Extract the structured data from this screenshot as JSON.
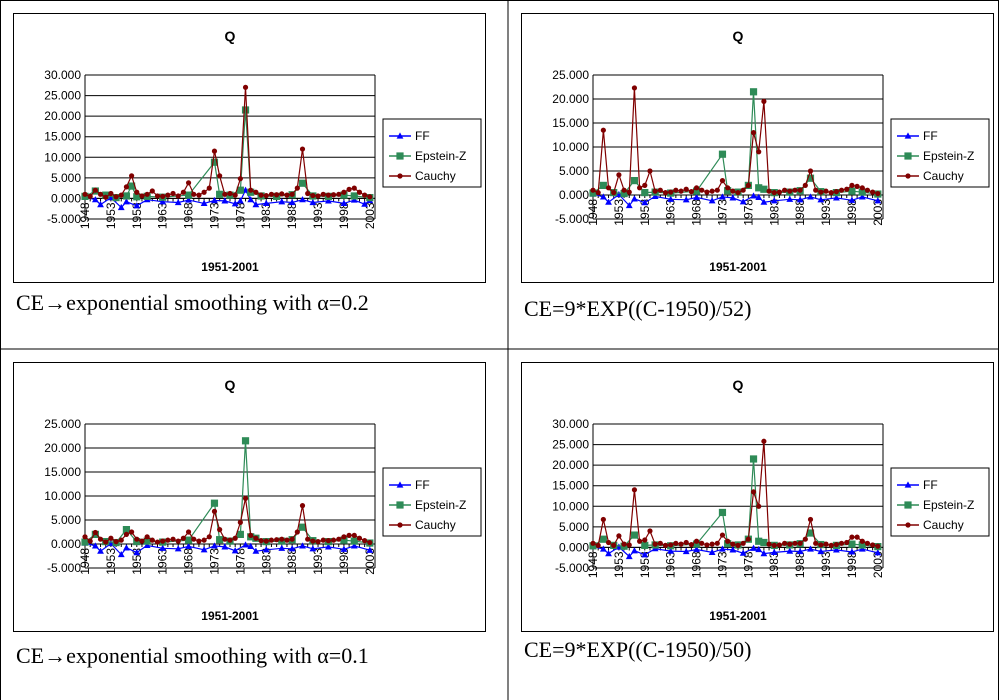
{
  "chart_data": [
    {
      "type": "line",
      "title": "Q",
      "xlabel": "1951-2001",
      "caption": "CE→exponential smoothing with α=0.2",
      "ylim": [
        -5,
        30
      ],
      "yticks": [
        "-5.000",
        "0.000",
        "5.000",
        "10.000",
        "15.000",
        "20.000",
        "25.000",
        "30.000"
      ],
      "x_range": [
        1948,
        2004
      ],
      "xticks": [
        "1948",
        "1953",
        "1958",
        "1963",
        "1968",
        "1973",
        "1978",
        "1983",
        "1988",
        "1993",
        "1998",
        "2003"
      ],
      "legend": "right",
      "series": [
        {
          "name": "FF",
          "color": "#0000FF",
          "marker": "triangle",
          "x": [
            1948,
            1950,
            1951,
            1953,
            1955,
            1956,
            1958,
            1960,
            1963,
            1966,
            1968,
            1971,
            1973,
            1975,
            1977,
            1978,
            1979,
            1980,
            1981,
            1983,
            1986,
            1988,
            1990,
            1992,
            1995,
            1998,
            2000,
            2002,
            2003
          ],
          "y": [
            0.3,
            -0.3,
            -1.5,
            0.2,
            -2.2,
            -0.8,
            -1.8,
            -0.3,
            -0.8,
            -1.0,
            -0.4,
            -1.2,
            -0.5,
            -0.6,
            -1.3,
            -0.6,
            2.0,
            -0.3,
            -1.5,
            -1.2,
            -0.8,
            -1.0,
            -0.3,
            -1.0,
            -0.6,
            -1.2,
            -0.4,
            -1.4,
            -0.5
          ]
        },
        {
          "name": "Epstein-Z",
          "color": "#2E8B57",
          "marker": "square",
          "x": [
            1948,
            1950,
            1952,
            1954,
            1956,
            1957,
            1958,
            1960,
            1963,
            1968,
            1973,
            1974,
            1976,
            1978,
            1979,
            1980,
            1982,
            1985,
            1988,
            1990,
            1992,
            1995,
            1998,
            2000,
            2003
          ],
          "y": [
            0.5,
            1.8,
            0.8,
            0.2,
            0.6,
            3.0,
            0.4,
            0.5,
            0.3,
            0.8,
            8.8,
            1.0,
            0.8,
            2.0,
            21.5,
            1.5,
            0.6,
            0.5,
            0.9,
            3.7,
            0.6,
            0.5,
            0.8,
            0.6,
            0.2
          ]
        },
        {
          "name": "Cauchy",
          "color": "#800000",
          "marker": "circle",
          "x": [
            1948,
            1949,
            1950,
            1951,
            1952,
            1953,
            1954,
            1955,
            1956,
            1957,
            1958,
            1959,
            1960,
            1961,
            1962,
            1963,
            1964,
            1965,
            1966,
            1967,
            1968,
            1969,
            1970,
            1971,
            1972,
            1973,
            1974,
            1975,
            1976,
            1977,
            1978,
            1979,
            1980,
            1981,
            1982,
            1983,
            1984,
            1985,
            1986,
            1987,
            1988,
            1989,
            1990,
            1991,
            1992,
            1993,
            1994,
            1995,
            1996,
            1997,
            1998,
            1999,
            2000,
            2001,
            2002,
            2003
          ],
          "y": [
            1.0,
            0.5,
            2.0,
            1.0,
            0.3,
            1.2,
            0.4,
            0.8,
            2.8,
            5.5,
            1.5,
            0.6,
            1.0,
            1.8,
            0.6,
            0.5,
            0.8,
            1.2,
            0.6,
            1.5,
            3.8,
            1.0,
            0.8,
            1.5,
            2.5,
            11.5,
            5.5,
            1.0,
            1.2,
            0.8,
            4.8,
            27.0,
            2.0,
            1.5,
            0.8,
            0.7,
            1.0,
            0.9,
            1.1,
            0.8,
            1.0,
            2.5,
            12.0,
            1.2,
            0.7,
            0.6,
            1.0,
            0.8,
            0.9,
            1.0,
            1.5,
            2.2,
            2.5,
            1.5,
            0.8,
            0.4
          ]
        }
      ]
    },
    {
      "type": "line",
      "title": "Q",
      "xlabel": "1951-2001",
      "caption": "CE=9*EXP((C-1950)/52)",
      "ylim": [
        -5,
        25
      ],
      "yticks": [
        "-5.000",
        "0.000",
        "5.000",
        "10.000",
        "15.000",
        "20.000",
        "25.000"
      ],
      "x_range": [
        1948,
        2004
      ],
      "xticks": [
        "1948",
        "1953",
        "1958",
        "1963",
        "1968",
        "1973",
        "1978",
        "1983",
        "1988",
        "1993",
        "1998",
        "2003"
      ],
      "legend": "right",
      "series": [
        {
          "name": "FF",
          "color": "#0000FF",
          "marker": "triangle",
          "x": [
            1948,
            1950,
            1951,
            1953,
            1955,
            1956,
            1958,
            1960,
            1963,
            1966,
            1968,
            1971,
            1973,
            1975,
            1977,
            1979,
            1980,
            1981,
            1983,
            1986,
            1988,
            1990,
            1992,
            1995,
            1998,
            2000,
            2003
          ],
          "y": [
            0.2,
            -0.4,
            -1.5,
            0.1,
            -2.2,
            -0.8,
            -1.6,
            -0.3,
            -0.9,
            -1.0,
            -0.5,
            -1.2,
            -0.4,
            -0.6,
            -1.4,
            -0.2,
            -0.5,
            -1.5,
            -1.2,
            -0.9,
            -1.0,
            -0.4,
            -1.0,
            -0.6,
            -1.1,
            -0.4,
            -1.2
          ]
        },
        {
          "name": "Epstein-Z",
          "color": "#2E8B57",
          "marker": "square",
          "x": [
            1948,
            1950,
            1952,
            1954,
            1956,
            1958,
            1960,
            1963,
            1968,
            1973,
            1974,
            1976,
            1978,
            1979,
            1980,
            1981,
            1983,
            1986,
            1988,
            1990,
            1992,
            1995,
            1998,
            2000,
            2003
          ],
          "y": [
            0.4,
            2.0,
            0.5,
            0.3,
            3.0,
            0.5,
            0.6,
            0.4,
            0.8,
            8.5,
            0.9,
            0.6,
            2.0,
            21.5,
            1.5,
            1.2,
            0.5,
            0.6,
            0.9,
            3.5,
            0.7,
            0.5,
            0.8,
            0.6,
            0.2
          ]
        },
        {
          "name": "Cauchy",
          "color": "#800000",
          "marker": "circle",
          "x": [
            1948,
            1949,
            1950,
            1951,
            1952,
            1953,
            1954,
            1955,
            1956,
            1957,
            1958,
            1959,
            1960,
            1961,
            1962,
            1963,
            1964,
            1965,
            1966,
            1967,
            1968,
            1969,
            1970,
            1971,
            1972,
            1973,
            1974,
            1975,
            1976,
            1977,
            1978,
            1979,
            1980,
            1981,
            1982,
            1983,
            1984,
            1985,
            1986,
            1987,
            1988,
            1989,
            1990,
            1991,
            1992,
            1993,
            1994,
            1995,
            1996,
            1997,
            1998,
            1999,
            2000,
            2001,
            2002,
            2003
          ],
          "y": [
            1.0,
            0.5,
            13.5,
            1.5,
            0.5,
            4.2,
            1.0,
            0.6,
            22.3,
            1.5,
            2.0,
            5.0,
            0.8,
            1.0,
            0.5,
            0.6,
            1.0,
            0.8,
            1.2,
            0.7,
            1.5,
            1.0,
            0.6,
            0.8,
            1.0,
            3.0,
            1.5,
            0.8,
            0.5,
            1.0,
            2.0,
            13.0,
            9.0,
            19.5,
            0.8,
            0.5,
            0.6,
            1.0,
            0.8,
            1.0,
            1.0,
            2.0,
            5.0,
            1.0,
            0.6,
            0.8,
            0.5,
            0.7,
            1.0,
            1.2,
            2.0,
            1.8,
            1.5,
            1.0,
            0.6,
            0.3
          ]
        }
      ]
    },
    {
      "type": "line",
      "title": "Q",
      "xlabel": "1951-2001",
      "caption": "CE→exponential smoothing with α=0.1",
      "ylim": [
        -5,
        25
      ],
      "yticks": [
        "-5.000",
        "0.000",
        "5.000",
        "10.000",
        "15.000",
        "20.000",
        "25.000"
      ],
      "x_range": [
        1948,
        2004
      ],
      "xticks": [
        "1948",
        "1953",
        "1958",
        "1963",
        "1968",
        "1973",
        "1978",
        "1983",
        "1988",
        "1993",
        "1998",
        "2003"
      ],
      "legend": "right",
      "series": [
        {
          "name": "FF",
          "color": "#0000FF",
          "marker": "triangle",
          "x": [
            1948,
            1950,
            1951,
            1953,
            1955,
            1956,
            1958,
            1960,
            1963,
            1966,
            1968,
            1971,
            1973,
            1975,
            1977,
            1979,
            1980,
            1981,
            1983,
            1986,
            1988,
            1990,
            1992,
            1995,
            1998,
            2000,
            2003
          ],
          "y": [
            0.2,
            -0.4,
            -1.5,
            0.1,
            -2.2,
            -0.8,
            -1.8,
            -0.3,
            -0.9,
            -1.0,
            -0.5,
            -1.2,
            -0.4,
            -0.6,
            -1.4,
            -0.2,
            -0.5,
            -1.5,
            -1.2,
            -0.9,
            -1.0,
            -0.4,
            -1.0,
            -0.6,
            -1.1,
            -0.4,
            -1.3
          ]
        },
        {
          "name": "Epstein-Z",
          "color": "#2E8B57",
          "marker": "square",
          "x": [
            1948,
            1950,
            1952,
            1954,
            1956,
            1958,
            1960,
            1963,
            1968,
            1973,
            1974,
            1976,
            1978,
            1979,
            1980,
            1981,
            1983,
            1986,
            1988,
            1990,
            1992,
            1995,
            1998,
            2000,
            2003
          ],
          "y": [
            0.4,
            2.0,
            0.5,
            0.3,
            3.0,
            0.5,
            0.6,
            0.4,
            0.8,
            8.5,
            0.9,
            0.6,
            2.0,
            21.5,
            1.5,
            1.2,
            0.5,
            0.6,
            0.9,
            3.5,
            0.7,
            0.5,
            0.8,
            0.6,
            0.2
          ]
        },
        {
          "name": "Cauchy",
          "color": "#800000",
          "marker": "circle",
          "x": [
            1948,
            1949,
            1950,
            1951,
            1952,
            1953,
            1954,
            1955,
            1956,
            1957,
            1958,
            1959,
            1960,
            1961,
            1962,
            1963,
            1964,
            1965,
            1966,
            1967,
            1968,
            1969,
            1970,
            1971,
            1972,
            1973,
            1974,
            1975,
            1976,
            1977,
            1978,
            1979,
            1980,
            1981,
            1982,
            1983,
            1984,
            1985,
            1986,
            1987,
            1988,
            1989,
            1990,
            1991,
            1992,
            1993,
            1994,
            1995,
            1996,
            1997,
            1998,
            1999,
            2000,
            2001,
            2002,
            2003
          ],
          "y": [
            1.5,
            0.6,
            2.4,
            1.0,
            0.4,
            1.2,
            0.5,
            0.8,
            2.0,
            2.5,
            1.0,
            0.6,
            1.5,
            0.8,
            0.4,
            0.6,
            0.8,
            1.0,
            0.6,
            1.2,
            2.5,
            1.0,
            0.6,
            0.8,
            1.5,
            6.8,
            3.0,
            1.0,
            0.8,
            1.2,
            4.5,
            9.5,
            1.8,
            1.2,
            0.7,
            0.6,
            0.8,
            0.9,
            1.0,
            0.8,
            1.0,
            2.5,
            8.0,
            1.0,
            0.6,
            0.5,
            0.8,
            0.7,
            0.8,
            1.0,
            1.5,
            1.8,
            1.8,
            1.2,
            0.7,
            0.3
          ]
        }
      ]
    },
    {
      "type": "line",
      "title": "Q",
      "xlabel": "1951-2001",
      "caption": "CE=9*EXP((C-1950)/50)",
      "ylim": [
        -5,
        30
      ],
      "yticks": [
        "-5.000",
        "0.000",
        "5.000",
        "10.000",
        "15.000",
        "20.000",
        "25.000",
        "30.000"
      ],
      "x_range": [
        1948,
        2004
      ],
      "xticks": [
        "1948",
        "1953",
        "1958",
        "1963",
        "1968",
        "1973",
        "1978",
        "1983",
        "1988",
        "1993",
        "1998",
        "2003"
      ],
      "legend": "right",
      "series": [
        {
          "name": "FF",
          "color": "#0000FF",
          "marker": "triangle",
          "x": [
            1948,
            1950,
            1951,
            1953,
            1955,
            1956,
            1958,
            1960,
            1963,
            1966,
            1968,
            1971,
            1973,
            1975,
            1977,
            1979,
            1980,
            1981,
            1983,
            1986,
            1988,
            1990,
            1992,
            1995,
            1998,
            2000,
            2003
          ],
          "y": [
            0.2,
            -0.4,
            -1.5,
            0.1,
            -2.2,
            -0.8,
            -1.8,
            -0.3,
            -0.9,
            -1.0,
            -0.5,
            -1.2,
            -0.4,
            -0.6,
            -1.4,
            -0.2,
            -0.5,
            -1.5,
            -1.2,
            -0.9,
            -1.0,
            -0.4,
            -1.0,
            -0.6,
            -1.1,
            -0.4,
            -1.3
          ]
        },
        {
          "name": "Epstein-Z",
          "color": "#2E8B57",
          "marker": "square",
          "x": [
            1948,
            1950,
            1952,
            1954,
            1956,
            1958,
            1960,
            1963,
            1968,
            1973,
            1974,
            1976,
            1978,
            1979,
            1980,
            1981,
            1983,
            1986,
            1988,
            1990,
            1992,
            1995,
            1998,
            2000,
            2003
          ],
          "y": [
            0.4,
            2.0,
            0.5,
            0.3,
            3.0,
            0.5,
            0.6,
            0.4,
            0.8,
            8.5,
            0.9,
            0.6,
            2.0,
            21.5,
            1.5,
            1.2,
            0.5,
            0.6,
            0.9,
            3.5,
            0.7,
            0.5,
            0.8,
            0.6,
            0.2
          ]
        },
        {
          "name": "Cauchy",
          "color": "#800000",
          "marker": "circle",
          "x": [
            1948,
            1949,
            1950,
            1951,
            1952,
            1953,
            1954,
            1955,
            1956,
            1957,
            1958,
            1959,
            1960,
            1961,
            1962,
            1963,
            1964,
            1965,
            1966,
            1967,
            1968,
            1969,
            1970,
            1971,
            1972,
            1973,
            1974,
            1975,
            1976,
            1977,
            1978,
            1979,
            1980,
            1981,
            1982,
            1983,
            1984,
            1985,
            1986,
            1987,
            1988,
            1989,
            1990,
            1991,
            1992,
            1993,
            1994,
            1995,
            1996,
            1997,
            1998,
            1999,
            2000,
            2001,
            2002,
            2003
          ],
          "y": [
            1.0,
            0.5,
            6.8,
            1.2,
            0.5,
            2.8,
            0.8,
            0.6,
            14.0,
            1.5,
            1.8,
            4.0,
            0.8,
            1.0,
            0.5,
            0.6,
            1.0,
            0.8,
            1.2,
            0.7,
            1.5,
            1.0,
            0.6,
            0.8,
            1.0,
            3.0,
            1.5,
            0.8,
            0.5,
            1.0,
            2.0,
            13.5,
            10.0,
            25.8,
            0.8,
            0.5,
            0.6,
            1.0,
            0.8,
            1.0,
            1.0,
            2.0,
            6.8,
            1.0,
            0.6,
            0.8,
            0.5,
            0.7,
            1.0,
            1.2,
            2.5,
            2.5,
            1.5,
            1.0,
            0.6,
            0.3
          ]
        }
      ]
    }
  ]
}
